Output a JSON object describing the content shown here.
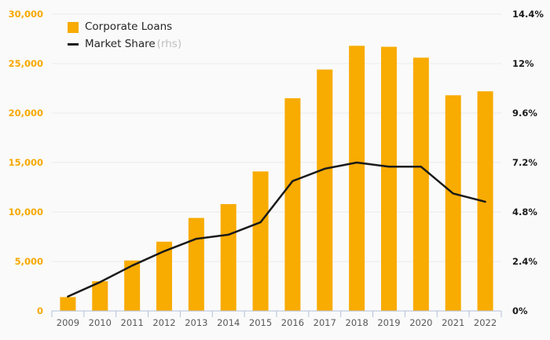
{
  "chart_data": {
    "type": "bar",
    "title": "",
    "categories": [
      "2009",
      "2010",
      "2011",
      "2012",
      "2013",
      "2014",
      "2015",
      "2016",
      "2017",
      "2018",
      "2019",
      "2020",
      "2021",
      "2022"
    ],
    "series": [
      {
        "name": "Corporate Loans",
        "type": "bar",
        "axis": "left",
        "values": [
          1400,
          3000,
          5100,
          7000,
          9400,
          10800,
          14100,
          21500,
          24400,
          26800,
          26700,
          25600,
          21800,
          22200
        ]
      },
      {
        "name": "Market Share",
        "type": "line",
        "axis": "right",
        "values": [
          0.7,
          1.4,
          2.2,
          2.9,
          3.5,
          3.7,
          4.3,
          6.3,
          6.9,
          7.2,
          7.0,
          7.0,
          5.7,
          5.3
        ]
      }
    ],
    "left_axis": {
      "min": 0,
      "max": 30000,
      "tick_step": 5000,
      "tick_labels": [
        "0",
        "5,000",
        "10,000",
        "15,000",
        "20,000",
        "25,000",
        "30,000"
      ]
    },
    "right_axis": {
      "min": 0,
      "max": 14.4,
      "tick_step": 2.4,
      "tick_labels": [
        "0%",
        "2.4%",
        "4.8%",
        "7.2%",
        "9.6%",
        "12%",
        "14.4%"
      ]
    },
    "grid": true,
    "legend_position": "top-left",
    "legend": {
      "corporate_loans_label": "Corporate Loans",
      "market_share_label": "Market Share",
      "market_share_suffix": "(rhs)"
    }
  },
  "colors": {
    "background": "#FAFAFA",
    "bar": "#F8AB00",
    "line": "#1A1A1A",
    "gridline": "#EAEAEA",
    "axis_line": "#B3C0DB",
    "left_tick_text": "#F8A800",
    "right_tick_text": "#1A1A1A",
    "x_tick_text": "#595959",
    "legend_text": "#262626",
    "legend_suffix_text": "#BFBFBF"
  }
}
